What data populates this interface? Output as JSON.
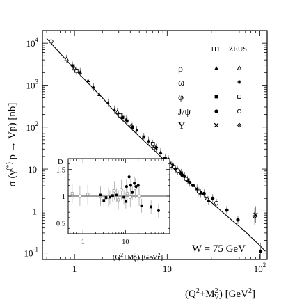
{
  "chart_data": [
    {
      "type": "scatter",
      "ylabel": "σ (γ(*) p → Vp)  [nb]",
      "ylabel_parts": {
        "main": "σ (γ",
        "sup": "(*)",
        "rest": " p → Vp)  [nb]"
      },
      "xlabel": "(Q²+M²V) [GeV²]",
      "xlabel_parts": {
        "pre": "(Q",
        "sup2": "2",
        "plus": "+M",
        "supV": "2",
        "subV": "V",
        "post": ") [GeV",
        "sup3": "2",
        "end": "]"
      },
      "xscale": "log",
      "yscale": "log",
      "xlim": [
        0.45,
        120
      ],
      "ylim": [
        0.07,
        20000
      ],
      "xticks": [
        {
          "value": 1,
          "base": "1",
          "exp": ""
        },
        {
          "value": 10,
          "base": "10",
          "exp": ""
        },
        {
          "value": 100,
          "base": "10",
          "exp": "2"
        }
      ],
      "yticks": [
        {
          "value": 10000,
          "base": "10",
          "exp": "4"
        },
        {
          "value": 1000,
          "base": "10",
          "exp": "3"
        },
        {
          "value": 100,
          "base": "10",
          "exp": "2"
        },
        {
          "value": 10,
          "base": "10",
          "exp": ""
        },
        {
          "value": 1,
          "base": "1",
          "exp": ""
        },
        {
          "value": 0.1,
          "base": "10",
          "exp": "-1"
        }
      ],
      "annotation": "W = 75 GeV",
      "legend": {
        "placement": "top-right",
        "columns": [
          "H1",
          "ZEUS"
        ],
        "rows": [
          {
            "label": "ρ",
            "h1": "triangle-filled",
            "zeus": "triangle-open"
          },
          {
            "label": "ω",
            "h1": "",
            "zeus": "star"
          },
          {
            "label": "φ",
            "h1": "square-filled",
            "zeus": "square-open"
          },
          {
            "label": "J/ψ",
            "h1": "circle-filled",
            "zeus": "circle-open"
          },
          {
            "label": "Υ",
            "h1": "cross",
            "zeus": "diamond-open"
          }
        ]
      },
      "fit_curve": {
        "x": [
          0.5,
          1,
          2,
          3,
          5,
          7,
          10,
          15,
          20,
          30,
          50,
          70,
          100,
          115
        ],
        "y": [
          13000,
          2400,
          500,
          180,
          60,
          30,
          14,
          6.5,
          3.7,
          1.6,
          0.6,
          0.32,
          0.15,
          0.11
        ]
      },
      "series": [
        {
          "name": "ρ",
          "marker": "triangle-filled",
          "points": [
            {
              "x": 1.15,
              "y": 2050
            },
            {
              "x": 1.4,
              "y": 1280
            },
            {
              "x": 1.6,
              "y": 900
            },
            {
              "x": 1.85,
              "y": 600
            },
            {
              "x": 2.3,
              "y": 380
            },
            {
              "x": 2.7,
              "y": 260
            },
            {
              "x": 3.6,
              "y": 150
            },
            {
              "x": 4.7,
              "y": 85
            },
            {
              "x": 6.3,
              "y": 47
            },
            {
              "x": 8.5,
              "y": 25
            },
            {
              "x": 11.5,
              "y": 13
            },
            {
              "x": 15.5,
              "y": 6.8
            },
            {
              "x": 21,
              "y": 3.4
            },
            {
              "x": 28,
              "y": 1.8
            }
          ]
        },
        {
          "name": "ρ",
          "marker": "triangle-open",
          "points": [
            {
              "x": 0.82,
              "y": 4200
            },
            {
              "x": 1.0,
              "y": 2500
            },
            {
              "x": 2.9,
              "y": 230
            },
            {
              "x": 4.1,
              "y": 110
            },
            {
              "x": 7.3,
              "y": 35
            },
            {
              "x": 10.3,
              "y": 17
            },
            {
              "x": 13.5,
              "y": 9
            },
            {
              "x": 27,
              "y": 2
            }
          ]
        },
        {
          "name": "ω",
          "marker": "star",
          "points": [
            {
              "x": 0.95,
              "y": 2900
            },
            {
              "x": 3.7,
              "y": 140
            },
            {
              "x": 7.6,
              "y": 32
            }
          ]
        },
        {
          "name": "φ",
          "marker": "square-filled",
          "points": [
            {
              "x": 3.3,
              "y": 170
            },
            {
              "x": 4.2,
              "y": 100
            },
            {
              "x": 5.6,
              "y": 58
            },
            {
              "x": 9.5,
              "y": 18
            },
            {
              "x": 14.2,
              "y": 8
            },
            {
              "x": 16.5,
              "y": 5.5
            },
            {
              "x": 23,
              "y": 2.7
            }
          ]
        },
        {
          "name": "φ",
          "marker": "square-open",
          "points": [
            {
              "x": 1.05,
              "y": 2200
            },
            {
              "x": 3.1,
              "y": 190
            },
            {
              "x": 7.0,
              "y": 40
            }
          ]
        },
        {
          "name": "J/ψ",
          "marker": "circle-filled",
          "points": [
            {
              "x": 9.9,
              "y": 16
            },
            {
              "x": 10.6,
              "y": 14
            },
            {
              "x": 11.2,
              "y": 12
            },
            {
              "x": 12.3,
              "y": 10
            },
            {
              "x": 14.5,
              "y": 7.2
            },
            {
              "x": 17.5,
              "y": 4.8
            },
            {
              "x": 19,
              "y": 4.1
            },
            {
              "x": 25,
              "y": 2.6
            },
            {
              "x": 31,
              "y": 2.0
            },
            {
              "x": 44,
              "y": 1.05
            },
            {
              "x": 58,
              "y": 0.62
            },
            {
              "x": 102,
              "y": 0.11
            }
          ]
        },
        {
          "name": "J/ψ",
          "marker": "circle-open",
          "points": [
            {
              "x": 0.56,
              "y": 11000
            },
            {
              "x": 10.8,
              "y": 12
            },
            {
              "x": 13,
              "y": 9.2
            },
            {
              "x": 16,
              "y": 5.8
            },
            {
              "x": 22,
              "y": 2.9
            },
            {
              "x": 34,
              "y": 1.55
            }
          ]
        },
        {
          "name": "Υ",
          "marker": "cross",
          "points": [
            {
              "x": 90,
              "y": 0.82
            }
          ]
        },
        {
          "name": "Υ",
          "marker": "diamond-open",
          "points": [
            {
              "x": 88,
              "y": 0.74
            }
          ]
        }
      ]
    },
    {
      "type": "scatter",
      "ylabel": "D",
      "xlabel": "(Q²+M²V) [GeV²]",
      "xscale": "log",
      "xlim": [
        0.45,
        110
      ],
      "ylim": [
        0.3,
        1.7
      ],
      "reference_line": 1,
      "xticks": [
        {
          "value": 1,
          "label": "1"
        },
        {
          "value": 10,
          "label": "10"
        }
      ],
      "yticks": [
        {
          "value": 0.5,
          "label": "0.5"
        },
        {
          "value": 1,
          "label": "1"
        },
        {
          "value": 1.5,
          "label": "1.5"
        }
      ],
      "series": [
        {
          "name": "ρ",
          "marker": "circle-open-grey",
          "points": [
            {
              "x": 0.56,
              "y": 1.05
            },
            {
              "x": 0.85,
              "y": 1.0
            },
            {
              "x": 1.3,
              "y": 1.03
            },
            {
              "x": 2.6,
              "y": 1.0
            },
            {
              "x": 4.0,
              "y": 0.98
            },
            {
              "x": 5.5,
              "y": 1.1
            },
            {
              "x": 6.8,
              "y": 0.93
            },
            {
              "x": 8.0,
              "y": 1.12
            },
            {
              "x": 11,
              "y": 1.05
            },
            {
              "x": 13,
              "y": 0.98
            },
            {
              "x": 17,
              "y": 1.15
            },
            {
              "x": 21,
              "y": 1.0
            }
          ]
        },
        {
          "name": "φ",
          "marker": "square-filled",
          "points": [
            {
              "x": 2.6,
              "y": 1.02
            },
            {
              "x": 3.1,
              "y": 0.92
            },
            {
              "x": 3.5,
              "y": 0.97
            },
            {
              "x": 4.3,
              "y": 0.98
            },
            {
              "x": 5.0,
              "y": 1.01
            },
            {
              "x": 6.2,
              "y": 1.02
            },
            {
              "x": 9.2,
              "y": 0.98
            },
            {
              "x": 10.2,
              "y": 0.9
            }
          ]
        },
        {
          "name": "J/ψ",
          "marker": "circle-filled",
          "points": [
            {
              "x": 10.6,
              "y": 1.18
            },
            {
              "x": 12.2,
              "y": 1.36
            },
            {
              "x": 13.3,
              "y": 1.2
            },
            {
              "x": 14.5,
              "y": 1.07
            },
            {
              "x": 16.2,
              "y": 1.24
            },
            {
              "x": 17.8,
              "y": 1.18
            },
            {
              "x": 20,
              "y": 1.2
            },
            {
              "x": 24,
              "y": 0.82
            },
            {
              "x": 40,
              "y": 0.8
            },
            {
              "x": 60,
              "y": 0.73
            }
          ]
        }
      ]
    }
  ]
}
